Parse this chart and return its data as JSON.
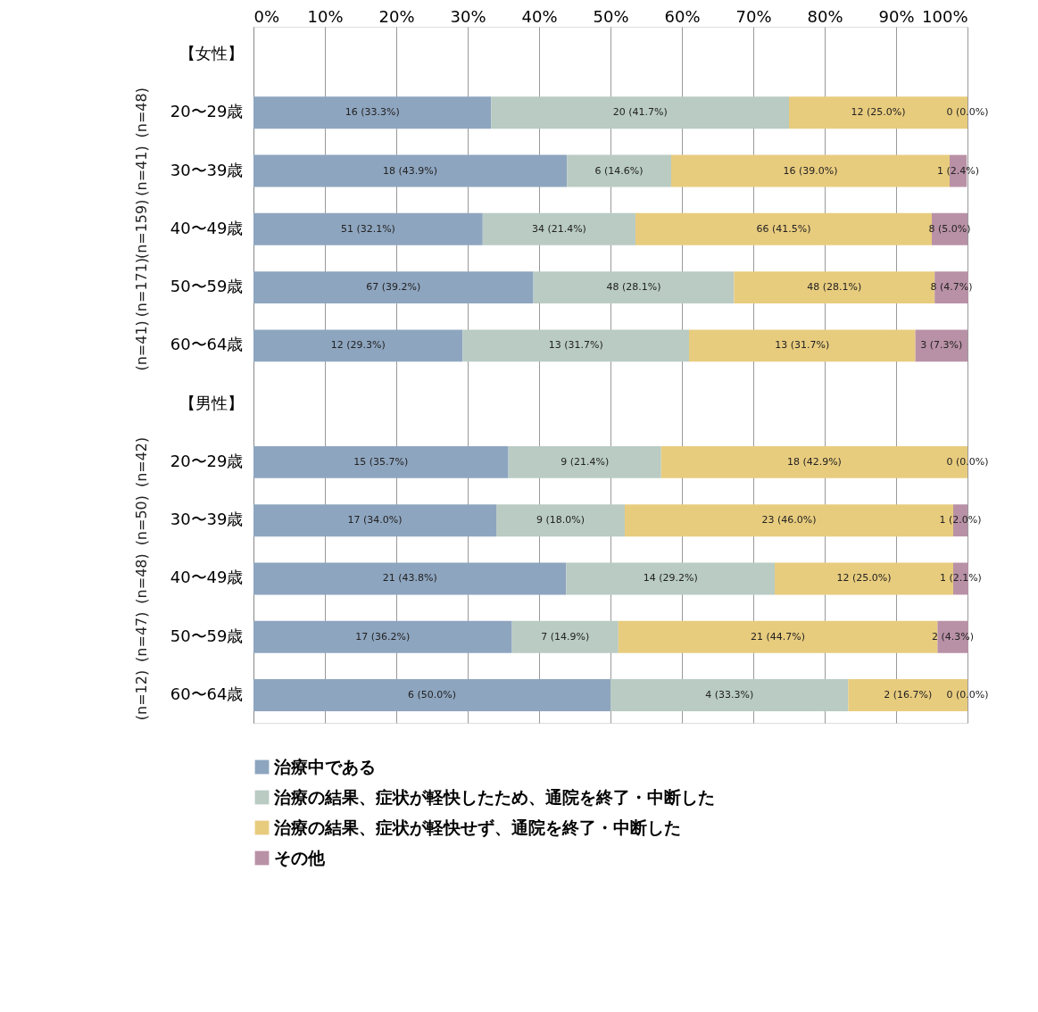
{
  "chart_data": {
    "type": "bar",
    "orientation": "horizontal",
    "stacked": true,
    "categories": [
      "【女性】",
      "20〜29歳",
      "30〜39歳",
      "40〜49歳",
      "50〜59歳",
      "60〜64歳",
      "【男性】",
      "20〜29歳",
      "30〜39歳",
      "40〜49歳",
      "50〜59歳",
      "60〜64歳"
    ],
    "series": [
      {
        "name": "治療中である",
        "color": "#8ea5bf",
        "values": [
          null,
          33.3,
          43.9,
          32.1,
          39.2,
          29.3,
          null,
          35.7,
          34.0,
          43.8,
          36.2,
          50.0
        ],
        "value_labels": [
          null,
          "16 (33.3%)",
          "18 (43.9%)",
          "51 (32.1%)",
          "67 (39.2%)",
          "12 (29.3%)",
          null,
          "15 (35.7%)",
          "17 (34.0%)",
          "21 (43.8%)",
          "17 (36.2%)",
          "6 (50.0%)"
        ]
      },
      {
        "name": "治療の結果、症状が軽快したため、通院を終了・中断した",
        "color": "#b9cbc3",
        "values": [
          null,
          41.7,
          14.6,
          21.4,
          28.1,
          31.7,
          null,
          21.4,
          18.0,
          29.2,
          14.9,
          33.3
        ],
        "value_labels": [
          null,
          "20 (41.7%)",
          "6 (14.6%)",
          "34 (21.4%)",
          "48 (28.1%)",
          "13 (31.7%)",
          null,
          "9 (21.4%)",
          "9 (18.0%)",
          "14 (29.2%)",
          "7 (14.9%)",
          "4 (33.3%)"
        ]
      },
      {
        "name": "治療の結果、症状が軽快せず、通院を終了・中断した",
        "color": "#e8cc7e",
        "values": [
          null,
          25.0,
          39.0,
          41.5,
          28.1,
          31.7,
          null,
          42.9,
          46.0,
          25.0,
          44.7,
          16.7
        ],
        "value_labels": [
          null,
          "12 (25.0%)",
          "16 (39.0%)",
          "66 (41.5%)",
          "48 (28.1%)",
          "13 (31.7%)",
          null,
          "18 (42.9%)",
          "23 (46.0%)",
          "12 (25.0%)",
          "21 (44.7%)",
          "2 (16.7%)"
        ]
      },
      {
        "name": "その他",
        "color": "#b991a6",
        "values": [
          null,
          0.0,
          2.4,
          5.0,
          4.7,
          7.3,
          null,
          0.0,
          2.0,
          2.1,
          4.3,
          0.0
        ],
        "value_labels": [
          null,
          "0 (0.0%)",
          "1 (2.4%)",
          "8 (5.0%)",
          "8 (4.7%)",
          "3 (7.3%)",
          null,
          "0 (0.0%)",
          "1 (2.0%)",
          "1 (2.1%)",
          "2 (4.3%)",
          "0 (0.0%)"
        ]
      }
    ],
    "xlim": [
      0,
      100
    ],
    "xticks": [
      {
        "value": 0,
        "label": "0%"
      },
      {
        "value": 10,
        "label": "10%"
      },
      {
        "value": 20,
        "label": "20%"
      },
      {
        "value": 30,
        "label": "30%"
      },
      {
        "value": 40,
        "label": "40%"
      },
      {
        "value": 50,
        "label": "50%"
      },
      {
        "value": 60,
        "label": "60%"
      },
      {
        "value": 70,
        "label": "70%"
      },
      {
        "value": 80,
        "label": "80%"
      },
      {
        "value": 90,
        "label": "90%"
      },
      {
        "value": 100,
        "label": "100%"
      }
    ],
    "annotations": [
      "(n=48)",
      "(n=41)",
      "(n=159)",
      "(n=171)",
      "(n=41)",
      "(n=42)",
      "(n=50)",
      "(n=48)",
      "(n=47)",
      "(n=12)"
    ],
    "grid": "x",
    "legend": "bottom"
  }
}
